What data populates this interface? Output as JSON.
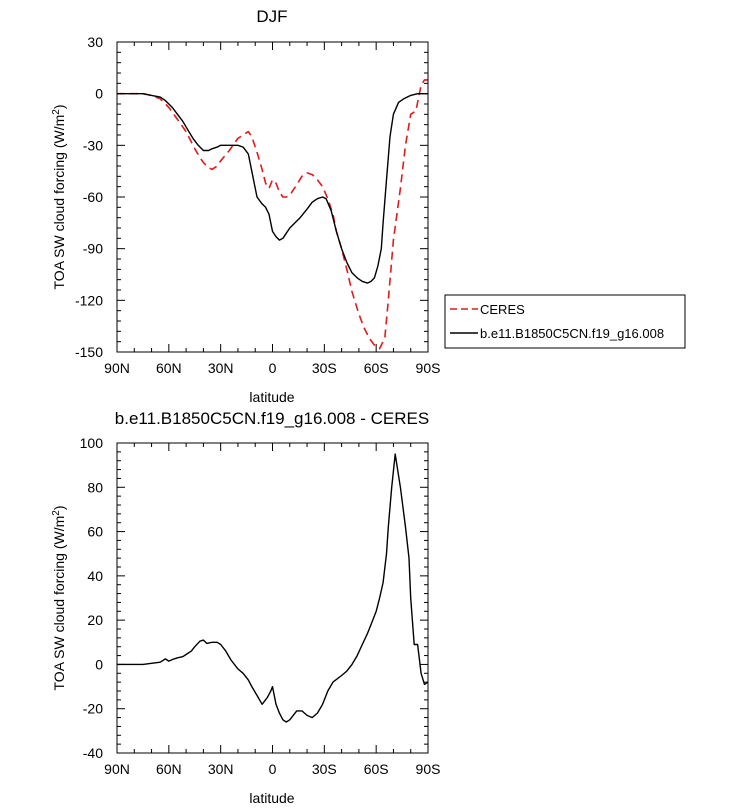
{
  "chart_data": [
    {
      "type": "line",
      "title": "DJF",
      "xlabel": "latitude",
      "ylabel": "TOA SW cloud forcing (W/m",
      "ylabel_sup": "2",
      "ylabel_end": ")",
      "xlim": [
        -90,
        90
      ],
      "ylim": [
        -150,
        30
      ],
      "x_ticks": [
        -90,
        -60,
        -30,
        0,
        30,
        60,
        90
      ],
      "x_tick_labels": [
        "90N",
        "60N",
        "30N",
        "0",
        "30S",
        "60S",
        "90S"
      ],
      "y_ticks": [
        30,
        0,
        -30,
        -60,
        -90,
        -120,
        -150
      ],
      "y_tick_labels": [
        "30",
        "0",
        "-30",
        "-60",
        "-90",
        "-120",
        "-150"
      ],
      "legend_position": "right",
      "series": [
        {
          "name": "CERES",
          "color": "#dd1c1c",
          "dash": "dashed",
          "x": [
            -90,
            -80,
            -75,
            -70,
            -65,
            -60,
            -55,
            -50,
            -45,
            -42,
            -40,
            -37,
            -35,
            -32,
            -30,
            -25,
            -20,
            -17,
            -14,
            -12,
            -9,
            -6,
            -4,
            -2,
            0,
            2,
            4,
            6,
            8,
            10,
            12,
            14,
            17,
            20,
            23,
            26,
            29,
            32,
            35,
            37,
            40,
            43,
            46,
            50,
            53,
            56,
            59,
            62,
            65,
            67,
            70,
            74,
            77,
            80,
            83,
            86,
            88,
            90
          ],
          "y": [
            0,
            0,
            0,
            -1,
            -3,
            -8,
            -15,
            -22,
            -32,
            -37,
            -40,
            -43,
            -44,
            -42,
            -39,
            -33,
            -26,
            -24,
            -22,
            -25,
            -34,
            -44,
            -52,
            -55,
            -50,
            -52,
            -57,
            -60,
            -60,
            -59,
            -56,
            -53,
            -48,
            -46,
            -47,
            -50,
            -54,
            -61,
            -70,
            -80,
            -90,
            -102,
            -115,
            -128,
            -136,
            -142,
            -146,
            -148,
            -142,
            -120,
            -85,
            -55,
            -30,
            -12,
            -10,
            5,
            8,
            8
          ]
        },
        {
          "name": "b.e11.B1850C5CN.f19_g16.008",
          "color": "#000000",
          "dash": "solid",
          "x": [
            -90,
            -80,
            -75,
            -70,
            -65,
            -62,
            -58,
            -55,
            -52,
            -49,
            -46,
            -43,
            -40,
            -37,
            -35,
            -32,
            -30,
            -27,
            -24,
            -20,
            -17,
            -14,
            -12,
            -9,
            -6,
            -4,
            -2,
            0,
            2,
            4,
            6,
            8,
            10,
            13,
            16,
            20,
            23,
            26,
            29,
            31,
            34,
            37,
            40,
            43,
            46,
            49,
            52,
            55,
            57,
            59,
            61,
            63,
            64,
            66,
            68,
            70,
            73,
            76,
            80,
            84,
            88,
            90
          ],
          "y": [
            0,
            0,
            0,
            -1,
            -2,
            -4,
            -8,
            -12,
            -16,
            -21,
            -26,
            -30,
            -33,
            -33,
            -32,
            -31,
            -30,
            -30,
            -30,
            -30,
            -31,
            -35,
            -45,
            -60,
            -64,
            -66,
            -70,
            -80,
            -83,
            -85,
            -84,
            -81,
            -78,
            -75,
            -72,
            -67,
            -63,
            -61,
            -60,
            -61,
            -68,
            -80,
            -90,
            -98,
            -104,
            -107,
            -109,
            -110,
            -109,
            -107,
            -100,
            -90,
            -75,
            -50,
            -25,
            -12,
            -5,
            -3,
            -1,
            0,
            0,
            0
          ]
        }
      ]
    },
    {
      "type": "line",
      "title": "b.e11.B1850C5CN.f19_g16.008 - CERES",
      "xlabel": "latitude",
      "ylabel": "TOA SW cloud forcing (W/m",
      "ylabel_sup": "2",
      "ylabel_end": ")",
      "xlim": [
        -90,
        90
      ],
      "ylim": [
        -40,
        100
      ],
      "x_ticks": [
        -90,
        -60,
        -30,
        0,
        30,
        60,
        90
      ],
      "x_tick_labels": [
        "90N",
        "60N",
        "30N",
        "0",
        "30S",
        "60S",
        "90S"
      ],
      "y_ticks": [
        100,
        80,
        60,
        40,
        20,
        0,
        -20,
        -40
      ],
      "y_tick_labels": [
        "100",
        "80",
        "60",
        "40",
        "20",
        "0",
        "-20",
        "-40"
      ],
      "series": [
        {
          "color": "#000000",
          "dash": "solid",
          "x": [
            -90,
            -80,
            -75,
            -70,
            -65,
            -62,
            -60,
            -57,
            -55,
            -52,
            -50,
            -47,
            -45,
            -42,
            -40,
            -38,
            -35,
            -32,
            -30,
            -27,
            -24,
            -20,
            -17,
            -14,
            -12,
            -9,
            -6,
            -3,
            -1,
            0,
            2,
            4,
            6,
            8,
            10,
            12,
            14,
            17,
            20,
            23,
            26,
            29,
            32,
            35,
            40,
            43,
            46,
            49,
            52,
            55,
            57,
            60,
            62,
            64,
            66,
            67,
            69,
            71,
            74,
            77,
            79,
            80,
            82,
            84,
            86,
            88,
            90
          ],
          "y": [
            0,
            0,
            0,
            0.5,
            1,
            2.5,
            1.5,
            2.5,
            3,
            3.5,
            4.5,
            6,
            8,
            10.5,
            11,
            9.5,
            10,
            10,
            9,
            6,
            2,
            -2,
            -4,
            -7,
            -10,
            -14,
            -18,
            -15,
            -12,
            -10,
            -18,
            -22,
            -25,
            -26,
            -25,
            -23,
            -21,
            -21,
            -23,
            -24,
            -22,
            -18,
            -12,
            -8,
            -5,
            -3,
            0,
            4,
            9,
            14,
            18,
            24,
            30,
            37,
            50,
            62,
            80,
            95,
            80,
            62,
            48,
            30,
            9,
            9,
            -4,
            -9,
            -8
          ]
        }
      ]
    }
  ]
}
